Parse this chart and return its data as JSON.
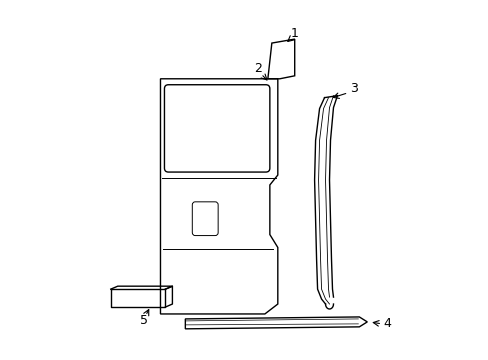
{
  "background_color": "#ffffff",
  "line_color": "#000000",
  "lw": 1.0,
  "fig_width": 4.89,
  "fig_height": 3.6,
  "dpi": 100
}
